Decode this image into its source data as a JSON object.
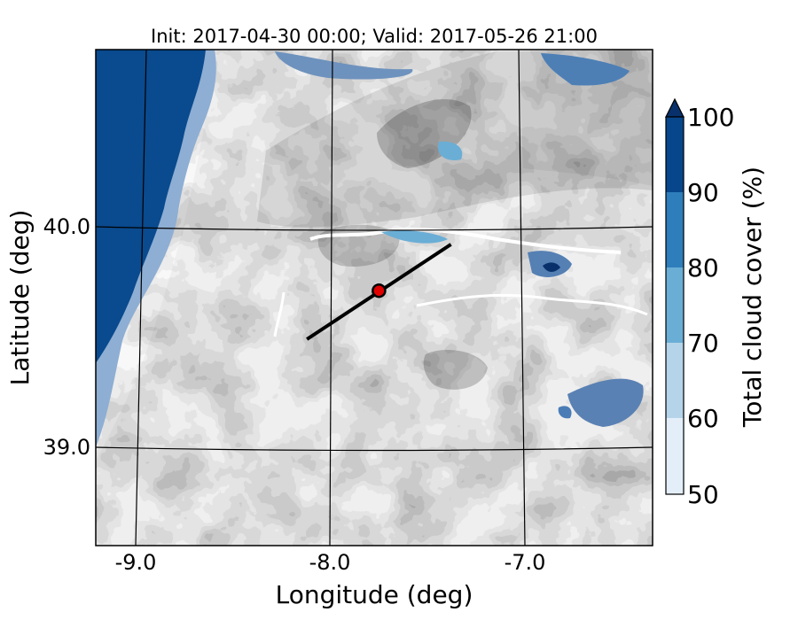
{
  "chart_data": {
    "type": "heatmap",
    "title": "Init: 2017-04-30 00:00; Valid: 2017-05-26 21:00",
    "xlabel": "Longitude (deg)",
    "ylabel": "Latitude (deg)",
    "xlim": [
      -9.2,
      -6.35
    ],
    "ylim": [
      38.55,
      40.8
    ],
    "x_ticks": [
      -9.0,
      -8.0,
      -7.0
    ],
    "x_tick_labels": [
      "-9.0",
      "-8.0",
      "-7.0"
    ],
    "y_ticks": [
      39.0,
      40.0
    ],
    "y_tick_labels": [
      "39.0",
      "40.0"
    ],
    "grid": true,
    "colorbar": {
      "label": "Total cloud cover (%)",
      "levels": [
        50,
        60,
        70,
        80,
        90,
        100
      ],
      "tick_labels": [
        "50",
        "60",
        "70",
        "80",
        "90",
        "100"
      ],
      "extend": "max",
      "colors": [
        "#e3eef9",
        "#b5d4e9",
        "#6aaed6",
        "#2e7ebc",
        "#08468b",
        "#08306b"
      ]
    },
    "cross_section_line": {
      "start": [
        -8.12,
        39.49
      ],
      "end": [
        -7.38,
        39.92
      ],
      "color": "#000000"
    },
    "point_marker": {
      "lon": -7.75,
      "lat": 39.71,
      "color": "#e00000"
    }
  }
}
